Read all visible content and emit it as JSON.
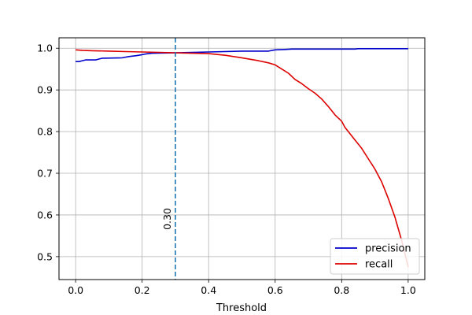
{
  "chart_data": {
    "type": "line",
    "title": "",
    "xlabel": "Threshold",
    "ylabel": "",
    "xlim": [
      -0.05,
      1.05
    ],
    "ylim": [
      0.445,
      1.025
    ],
    "xticks": [
      0.0,
      0.2,
      0.4,
      0.6,
      0.8,
      1.0
    ],
    "xtick_labels": [
      "0.0",
      "0.2",
      "0.4",
      "0.6",
      "0.8",
      "1.0"
    ],
    "yticks": [
      0.5,
      0.6,
      0.7,
      0.8,
      0.9,
      1.0
    ],
    "ytick_labels": [
      "0.5",
      "0.6",
      "0.7",
      "0.8",
      "0.9",
      "1.0"
    ],
    "grid": true,
    "legend_position": "bottom-right",
    "series": [
      {
        "name": "precision",
        "color": "#0000cc",
        "x": [
          0.0,
          0.01,
          0.02,
          0.03,
          0.06,
          0.07,
          0.08,
          0.14,
          0.16,
          0.18,
          0.19,
          0.21,
          0.23,
          0.3,
          0.35,
          0.4,
          0.5,
          0.58,
          0.6,
          0.63,
          0.65,
          0.7,
          0.75,
          0.8,
          0.84,
          0.85,
          0.9,
          1.0
        ],
        "y": [
          0.968,
          0.968,
          0.97,
          0.972,
          0.972,
          0.974,
          0.976,
          0.977,
          0.98,
          0.982,
          0.983,
          0.986,
          0.988,
          0.989,
          0.99,
          0.991,
          0.993,
          0.993,
          0.996,
          0.997,
          0.998,
          0.998,
          0.998,
          0.998,
          0.998,
          0.999,
          0.999,
          0.999
        ]
      },
      {
        "name": "recall",
        "color": "#dd0000",
        "x": [
          0.0,
          0.02,
          0.05,
          0.1,
          0.15,
          0.2,
          0.25,
          0.3,
          0.35,
          0.4,
          0.45,
          0.5,
          0.55,
          0.58,
          0.6,
          0.62,
          0.64,
          0.66,
          0.68,
          0.7,
          0.72,
          0.74,
          0.76,
          0.78,
          0.8,
          0.81,
          0.82,
          0.84,
          0.86,
          0.88,
          0.9,
          0.92,
          0.94,
          0.96,
          0.98,
          1.0
        ],
        "y": [
          0.996,
          0.995,
          0.994,
          0.993,
          0.992,
          0.991,
          0.99,
          0.989,
          0.988,
          0.987,
          0.983,
          0.977,
          0.97,
          0.965,
          0.96,
          0.95,
          0.94,
          0.925,
          0.915,
          0.903,
          0.892,
          0.878,
          0.86,
          0.84,
          0.825,
          0.81,
          0.8,
          0.78,
          0.76,
          0.735,
          0.71,
          0.68,
          0.64,
          0.595,
          0.54,
          0.475
        ]
      }
    ],
    "annotations": [
      {
        "type": "vline",
        "x": 0.3,
        "color": "#1f77b4",
        "style": "dashed",
        "label": "0.30"
      }
    ]
  }
}
